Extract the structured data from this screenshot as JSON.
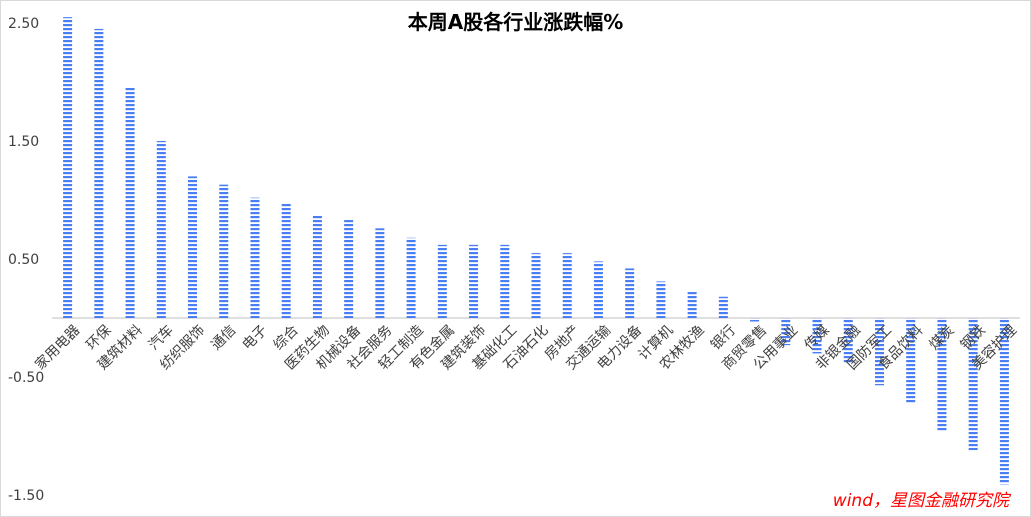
{
  "chart_data": {
    "type": "bar",
    "title": "本周A股各行业涨跌幅%",
    "source": "wind，星图金融研究院",
    "ylim": [
      -1.5,
      2.5
    ],
    "yticks": [
      "2.50",
      "1.50",
      "0.50",
      "-0.50",
      "-1.50"
    ],
    "ytick_values": [
      2.5,
      1.5,
      0.5,
      -0.5,
      -1.5
    ],
    "grid": false,
    "bar_color": "#4a7ef5",
    "bar_pattern": "horizontal-stripes",
    "categories": [
      "家用电器",
      "环保",
      "建筑材料",
      "汽车",
      "纺织服饰",
      "通信",
      "电子",
      "综合",
      "医药生物",
      "机械设备",
      "社会服务",
      "轻工制造",
      "有色金属",
      "建筑装饰",
      "基础化工",
      "石油石化",
      "房地产",
      "交通运输",
      "电力设备",
      "计算机",
      "农林牧渔",
      "银行",
      "商贸零售",
      "公用事业",
      "传媒",
      "非银金融",
      "国防军工",
      "食品饮料",
      "煤炭",
      "钢铁",
      "美容护理"
    ],
    "values": [
      2.55,
      2.45,
      1.95,
      1.5,
      1.2,
      1.13,
      1.02,
      0.97,
      0.87,
      0.83,
      0.76,
      0.68,
      0.62,
      0.62,
      0.62,
      0.55,
      0.55,
      0.48,
      0.42,
      0.31,
      0.22,
      0.18,
      -0.03,
      -0.23,
      -0.3,
      -0.38,
      -0.57,
      -0.72,
      -0.96,
      -1.12,
      -1.41
    ]
  }
}
